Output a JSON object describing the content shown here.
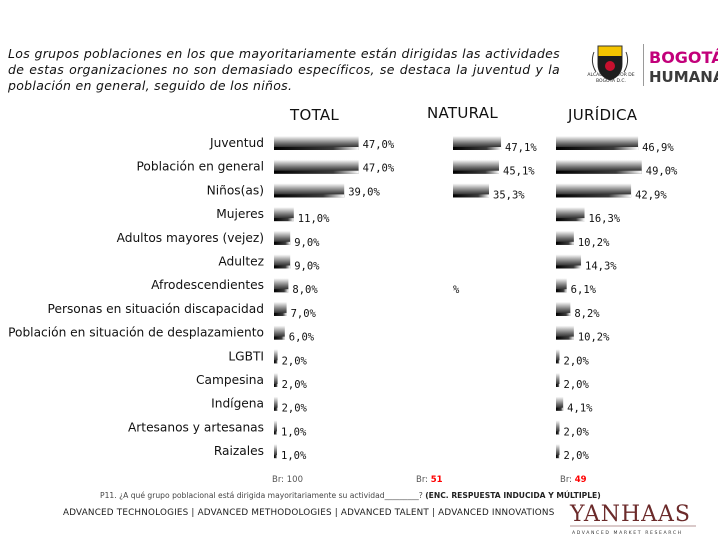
{
  "intro_text": "Los grupos poblaciones en los que mayoritariamente están dirigidas las actividades de estas organizaciones no son demasiado específicos, se destaca la juventud y la población en general, seguido de los niños.",
  "logos": {
    "seal_caption": "ALCALDÍA MAYOR DE BOGOTÁ D.C.",
    "bogota_line1": "BOGOTÁ",
    "bogota_line2": "HUMANA",
    "yanhaas_name": "YANHAAS",
    "yanhaas_tagline": "ADVANCED MARKET RESEARCH"
  },
  "colors": {
    "bar_dark": "#000000",
    "bar_light": "#ffffff",
    "base_value": "#ff0000",
    "text": "#111111"
  },
  "chart_data": {
    "type": "bar",
    "orientation": "horizontal",
    "categories": [
      "Juventud",
      "Población en general",
      "Niños(as)",
      "Mujeres",
      "Adultos mayores (vejez)",
      "Adultez",
      "Afrodescendientes",
      "Personas en situación discapacidad",
      "Población en situación de desplazamiento",
      "LGBTI",
      "Campesina",
      "Indígena",
      "Artesanos y artesanas",
      "Raizales"
    ],
    "panels": [
      {
        "title": "TOTAL",
        "values": [
          47.0,
          47.0,
          39.0,
          11.0,
          9.0,
          9.0,
          8.0,
          7.0,
          6.0,
          2.0,
          2.0,
          2.0,
          1.0,
          1.0
        ],
        "labels": [
          "47,0%",
          "47,0%",
          "39,0%",
          "11,0%",
          "9,0%",
          "9,0%",
          "8,0%",
          "7,0%",
          "6,0%",
          "2,0%",
          "2,0%",
          "2,0%",
          "1,0%",
          "1,0%"
        ],
        "base_label": "Br:",
        "base_value": "100"
      },
      {
        "title": "NATURAL",
        "values": [
          47.1,
          45.1,
          35.3,
          null,
          null,
          null,
          null,
          null,
          null,
          null,
          null,
          null,
          null,
          null
        ],
        "labels": [
          "47,1%",
          "45,1%",
          "35,3%",
          "",
          "",
          "",
          "%",
          "",
          "",
          "",
          "",
          "",
          "",
          ""
        ],
        "base_label": "Br:",
        "base_value": "51"
      },
      {
        "title": "JURÍDICA",
        "values": [
          46.9,
          49.0,
          42.9,
          16.3,
          10.2,
          14.3,
          6.1,
          8.2,
          10.2,
          2.0,
          2.0,
          4.1,
          2.0,
          2.0
        ],
        "labels": [
          "46,9%",
          "49,0%",
          "42,9%",
          "16,3%",
          "10,2%",
          "14,3%",
          "6,1%",
          "8,2%",
          "10,2%",
          "2,0%",
          "2,0%",
          "4,1%",
          "2,0%",
          "2,0%"
        ],
        "base_label": "Br:",
        "base_value": "49"
      }
    ]
  },
  "footer": {
    "question": "P11. ¿A qué grupo poblacional está dirigida mayoritariamente su actividad_________?",
    "note": "(ENC. RESPUESTA INDUCIDA Y MÚLTIPLE)",
    "tagline": "ADVANCED TECHNOLOGIES  |  ADVANCED METHODOLOGIES  |  ADVANCED TALENT  |  ADVANCED INNOVATIONS"
  }
}
